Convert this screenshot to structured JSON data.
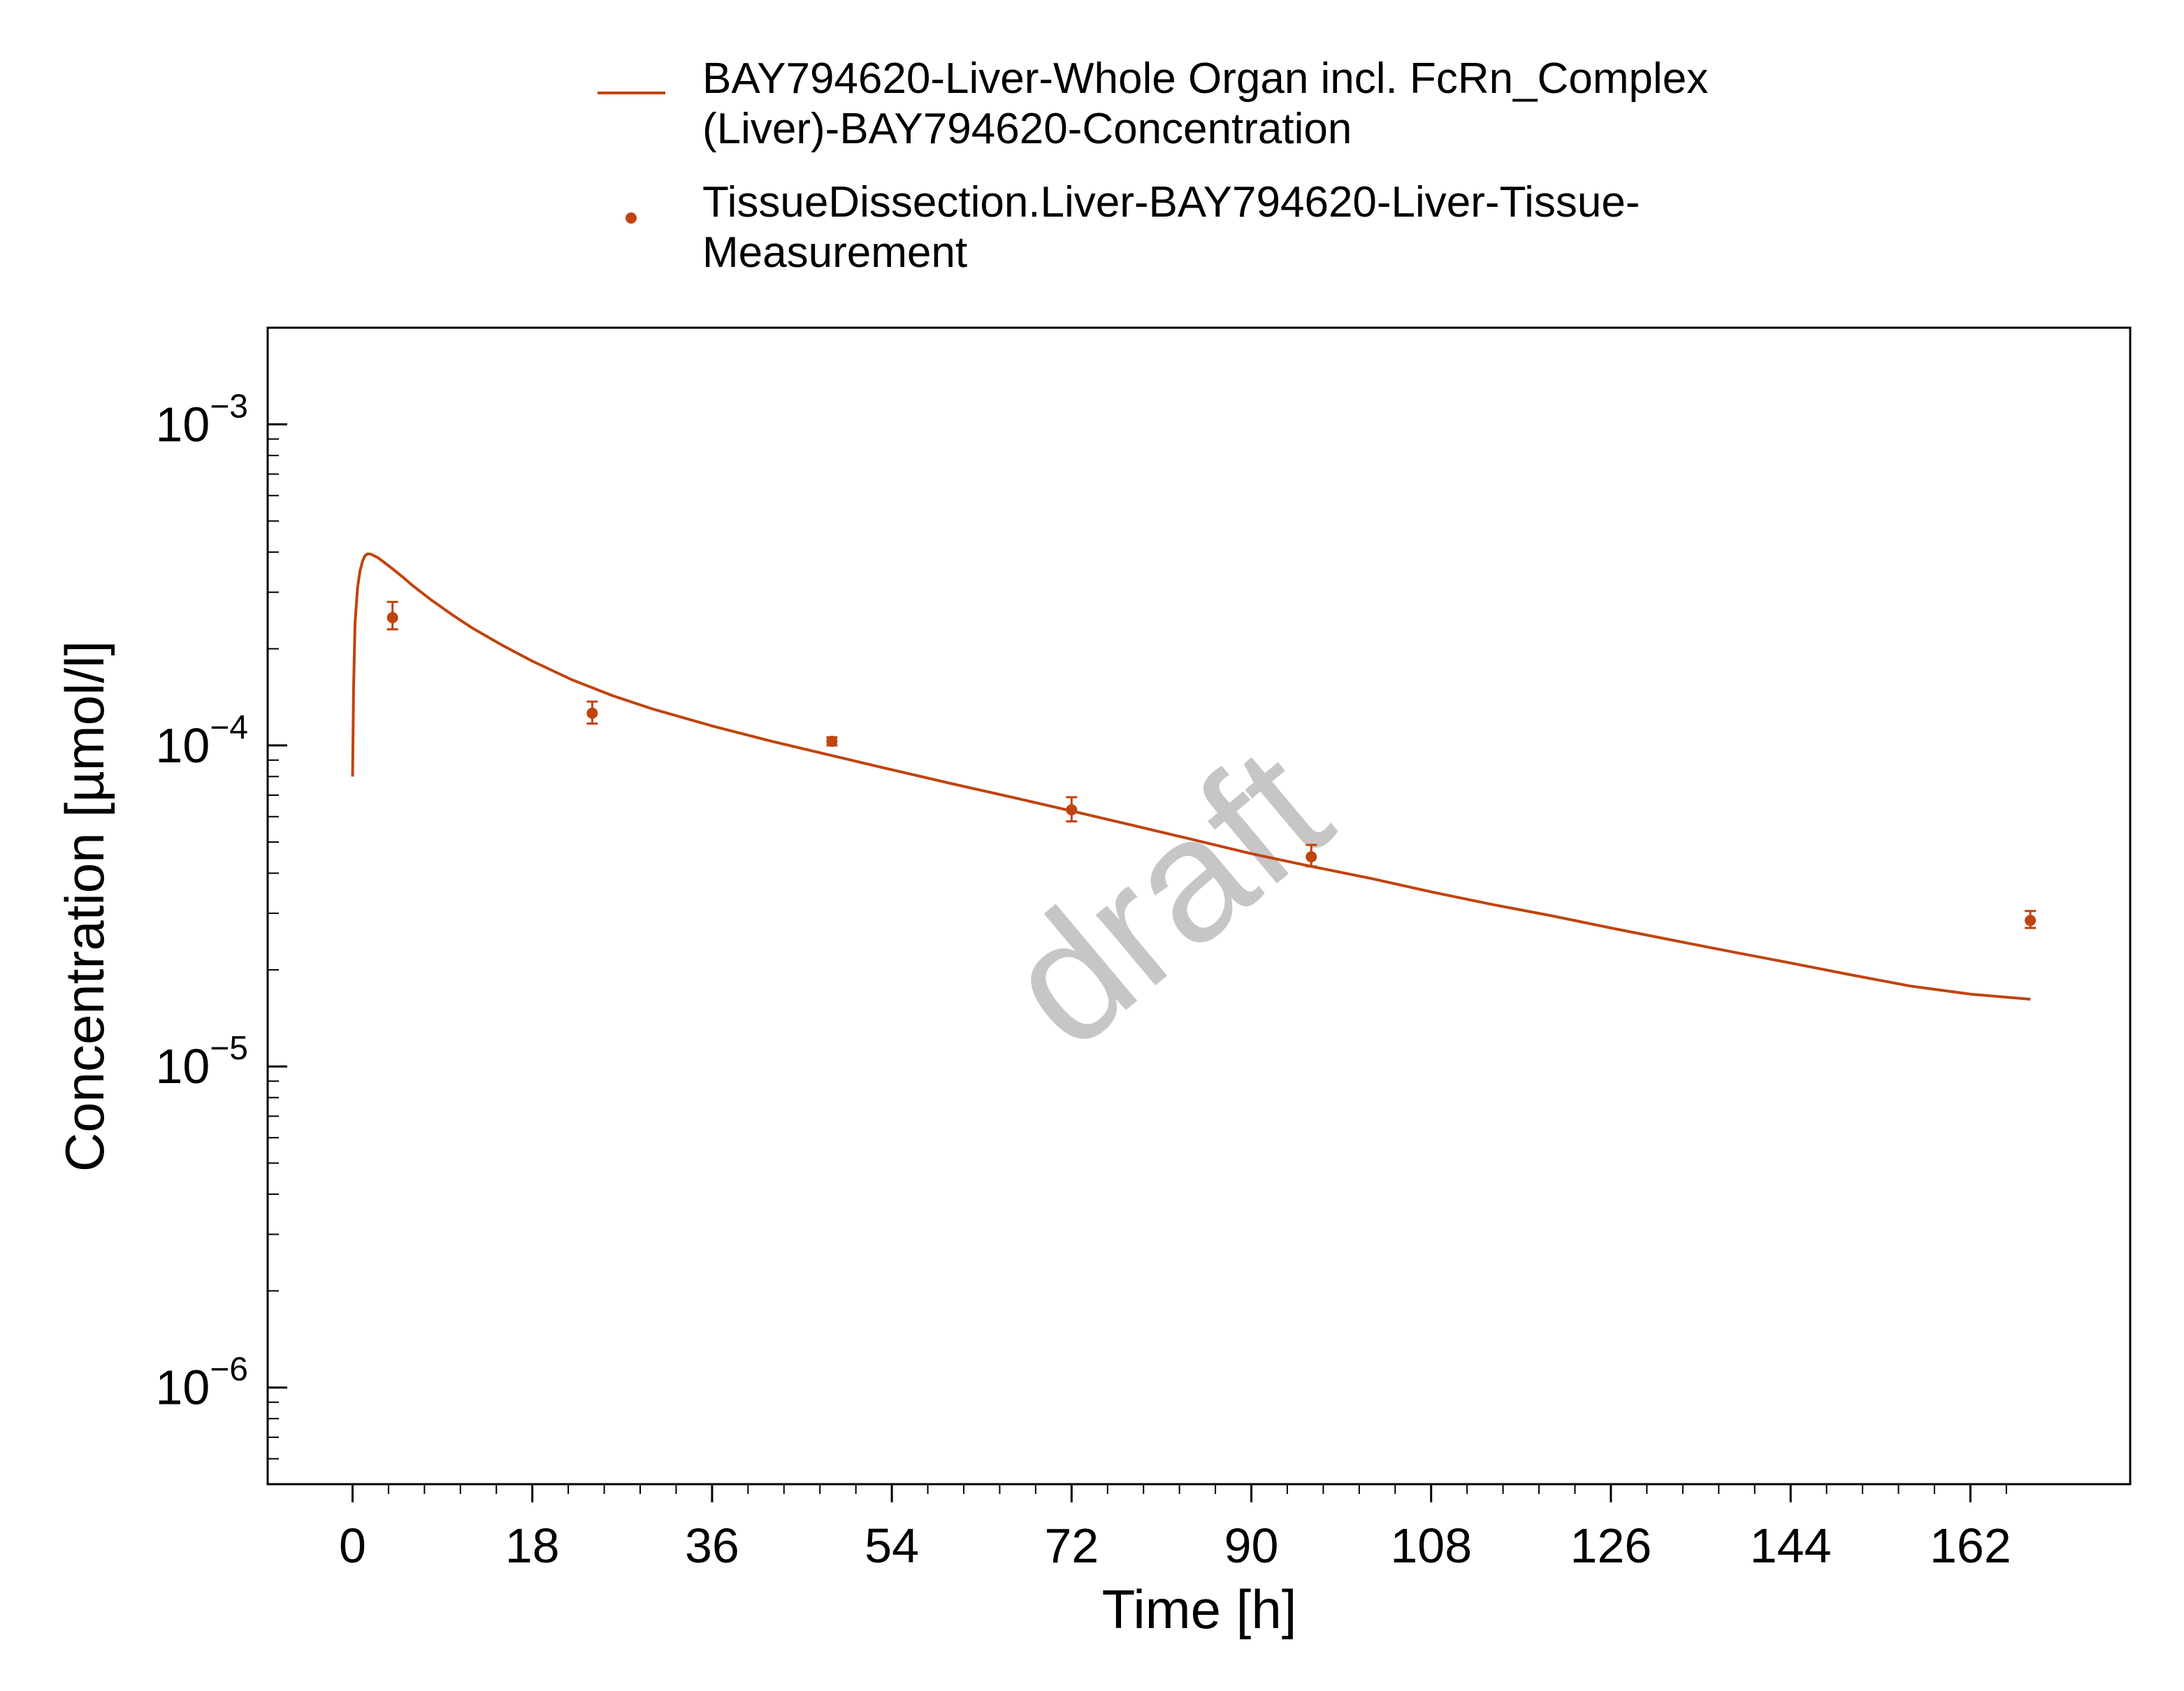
{
  "colors": {
    "series": "#c0440e",
    "axis": "#000000",
    "watermark": "#c6c6c6"
  },
  "watermark": "draft",
  "legend": {
    "line_label_1": "BAY794620-Liver-Whole Organ incl. FcRn_Complex",
    "line_label_2": "(Liver)-BAY794620-Concentration",
    "marker_label_1": "TissueDissection.Liver-BAY794620-Liver-Tissue-",
    "marker_label_2": "Measurement"
  },
  "chart_data": {
    "type": "line",
    "xlabel": "Time [h]",
    "ylabel": "Concentration [µmol/l]",
    "xlim": [
      -8.5,
      178
    ],
    "ylim": [
      5e-07,
      0.002
    ],
    "yscale": "log",
    "x_ticks": [
      0,
      18,
      36,
      54,
      72,
      90,
      108,
      126,
      144,
      162
    ],
    "y_ticks": [
      {
        "value": 0.001,
        "base": "10",
        "exp": "−3"
      },
      {
        "value": 0.0001,
        "base": "10",
        "exp": "−4"
      },
      {
        "value": 1e-05,
        "base": "10",
        "exp": "−5"
      },
      {
        "value": 1e-06,
        "base": "10",
        "exp": "−6"
      }
    ],
    "series": [
      {
        "name": "BAY794620-Liver-Whole Organ incl. FcRn_Complex (Liver)-BAY794620-Concentration",
        "kind": "line",
        "x": [
          0,
          0.1,
          0.25,
          0.5,
          0.75,
          1,
          1.25,
          1.5,
          1.75,
          2,
          2.5,
          3,
          4,
          5,
          6,
          8,
          10,
          12,
          15,
          18,
          22,
          26,
          30,
          36,
          42,
          48,
          54,
          60,
          66,
          72,
          78,
          84,
          90,
          96,
          102,
          108,
          114,
          120,
          126,
          132,
          138,
          144,
          150,
          156,
          162,
          168
        ],
        "y": [
          8e-05,
          0.00015,
          0.00024,
          0.00031,
          0.00035,
          0.000375,
          0.00039,
          0.000395,
          0.000395,
          0.000392,
          0.000385,
          0.000375,
          0.000355,
          0.000335,
          0.000315,
          0.000282,
          0.000255,
          0.000232,
          0.000205,
          0.000183,
          0.00016,
          0.000143,
          0.00013,
          0.000115,
          0.000103,
          9.3e-05,
          8.4e-05,
          7.6e-05,
          6.9e-05,
          6.25e-05,
          5.65e-05,
          5.1e-05,
          4.6e-05,
          4.2e-05,
          3.85e-05,
          3.5e-05,
          3.2e-05,
          2.95e-05,
          2.7e-05,
          2.48e-05,
          2.28e-05,
          2.1e-05,
          1.93e-05,
          1.78e-05,
          1.68e-05,
          1.62e-05
        ]
      },
      {
        "name": "TissueDissection.Liver-BAY794620-Liver-Tissue-Measurement",
        "kind": "scatter",
        "points": [
          {
            "x": 4,
            "y": 0.00025,
            "ylo": 0.00023,
            "yhi": 0.00028
          },
          {
            "x": 24,
            "y": 0.000126,
            "ylo": 0.000117,
            "yhi": 0.000137
          },
          {
            "x": 48,
            "y": 0.000103,
            "ylo": 0.0001,
            "yhi": 0.000106
          },
          {
            "x": 72,
            "y": 6.3e-05,
            "ylo": 5.8e-05,
            "yhi": 6.9e-05
          },
          {
            "x": 96,
            "y": 4.5e-05,
            "ylo": 4.2e-05,
            "yhi": 4.9e-05
          },
          {
            "x": 168,
            "y": 2.85e-05,
            "ylo": 2.7e-05,
            "yhi": 3.05e-05
          }
        ]
      }
    ]
  }
}
